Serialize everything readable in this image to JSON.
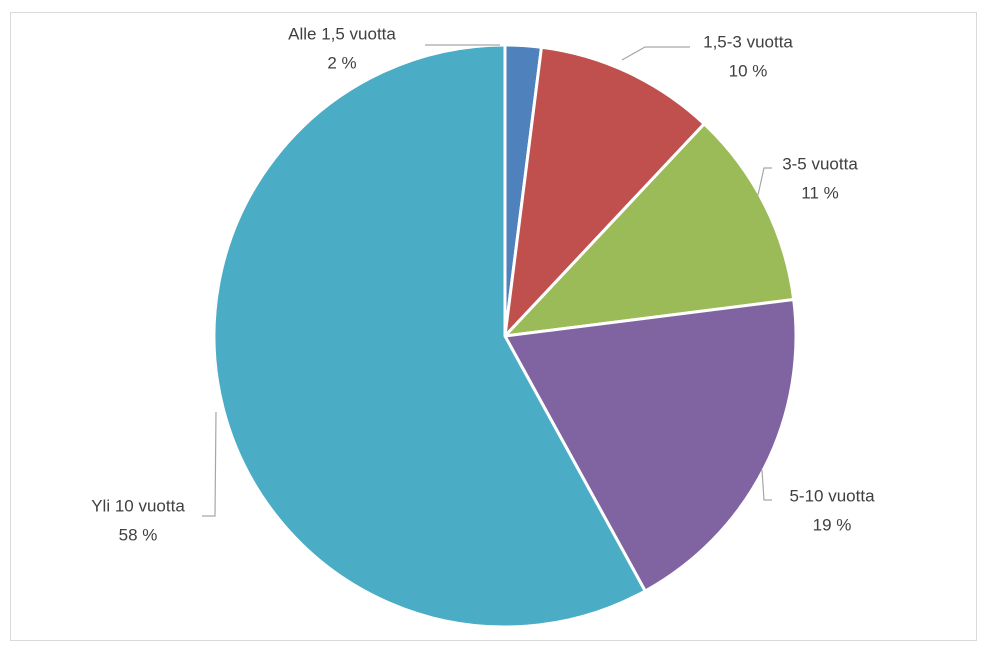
{
  "chart_data": {
    "type": "pie",
    "categories": [
      "Alle 1,5 vuotta",
      "1,5-3 vuotta",
      "3-5 vuotta",
      "5-10 vuotta",
      "Yli 10 vuotta"
    ],
    "values": [
      2,
      10,
      11,
      19,
      58
    ],
    "value_labels": [
      "2 %",
      "10 %",
      "11 %",
      "19 %",
      "58 %"
    ],
    "colors": [
      "#4f81bd",
      "#c0504d",
      "#9bbb59",
      "#8064a2",
      "#4bacc6"
    ]
  }
}
